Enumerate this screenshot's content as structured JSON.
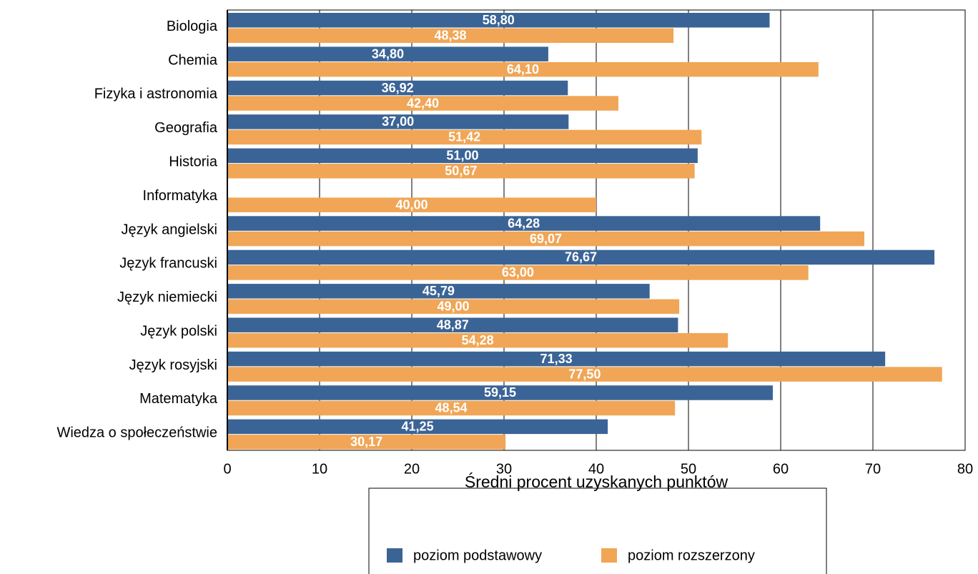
{
  "chart_data": {
    "type": "bar",
    "orientation": "horizontal",
    "x_label": "Średni procent uzyskanych punktów",
    "categories": [
      "Biologia",
      "Chemia",
      "Fizyka i astronomia",
      "Geografia",
      "Historia",
      "Informatyka",
      "Język angielski",
      "Język francuski",
      "Język niemiecki",
      "Język polski",
      "Język rosyjski",
      "Matematyka",
      "Wiedza o społeczeństwie"
    ],
    "series": [
      {
        "name": "poziom podstawowy",
        "color": "#3b6496",
        "values": [
          58.8,
          34.8,
          36.92,
          37.0,
          51.0,
          null,
          64.28,
          76.67,
          45.79,
          48.87,
          71.33,
          59.15,
          41.25
        ],
        "value_labels": [
          "58,80",
          "34,80",
          "36,92",
          "37,00",
          "51,00",
          null,
          "64,28",
          "76,67",
          "45,79",
          "48,87",
          "71,33",
          "59,15",
          "41,25"
        ]
      },
      {
        "name": "poziom rozszerzony",
        "color": "#f0a656",
        "values": [
          48.38,
          64.1,
          42.4,
          51.42,
          50.67,
          40.0,
          69.07,
          63.0,
          49.0,
          54.28,
          77.5,
          48.54,
          30.17
        ],
        "value_labels": [
          "48,38",
          "64,10",
          "42,40",
          "51,42",
          "50,67",
          "40,00",
          "69,07",
          "63,00",
          "49,00",
          "54,28",
          "77,50",
          "48,54",
          "30,17"
        ]
      }
    ],
    "xlim": [
      0,
      80
    ],
    "xticks": [
      0,
      10,
      20,
      30,
      40,
      50,
      60,
      70,
      80
    ],
    "grid": true,
    "legend": "bottom"
  }
}
